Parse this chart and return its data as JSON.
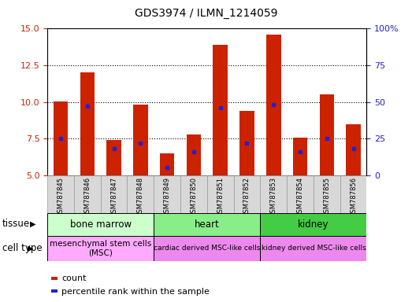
{
  "title": "GDS3974 / ILMN_1214059",
  "samples": [
    "GSM787845",
    "GSM787846",
    "GSM787847",
    "GSM787848",
    "GSM787849",
    "GSM787850",
    "GSM787851",
    "GSM787852",
    "GSM787853",
    "GSM787854",
    "GSM787855",
    "GSM787856"
  ],
  "counts": [
    10.05,
    12.0,
    7.4,
    9.8,
    6.5,
    7.8,
    13.9,
    9.4,
    14.6,
    7.55,
    10.5,
    8.5
  ],
  "percentiles": [
    25,
    47,
    18,
    22,
    5,
    16,
    46,
    22,
    48,
    16,
    25,
    18
  ],
  "ylim_left": [
    5,
    15
  ],
  "ylim_right": [
    0,
    100
  ],
  "yticks_left": [
    5,
    7.5,
    10,
    12.5,
    15
  ],
  "yticks_right": [
    0,
    25,
    50,
    75,
    100
  ],
  "ytick_labels_right": [
    "0",
    "25",
    "50",
    "75",
    "100%"
  ],
  "bar_color": "#cc2200",
  "dot_color": "#2222cc",
  "bar_width": 0.55,
  "tissue_spans": [
    {
      "start": 0,
      "end": 4,
      "label": "bone marrow",
      "color": "#ccffcc"
    },
    {
      "start": 4,
      "end": 8,
      "label": "heart",
      "color": "#88ee88"
    },
    {
      "start": 8,
      "end": 12,
      "label": "kidney",
      "color": "#44cc44"
    }
  ],
  "celltype_spans": [
    {
      "start": 0,
      "end": 4,
      "label": "mesenchymal stem cells\n(MSC)",
      "color": "#ffaaff",
      "fontsize": 7.5
    },
    {
      "start": 4,
      "end": 8,
      "label": "cardiac derived MSC-like cells",
      "color": "#ee88ee",
      "fontsize": 6.5
    },
    {
      "start": 8,
      "end": 12,
      "label": "kidney derived MSC-like cells",
      "color": "#ee88ee",
      "fontsize": 6.5
    }
  ],
  "grid_dotted_at": [
    7.5,
    10.0,
    12.5
  ],
  "tick_color_left": "#cc2200",
  "tick_color_right": "#2222cc",
  "plot_bg": "#ffffff",
  "legend_count_label": "count",
  "legend_pct_label": "percentile rank within the sample",
  "title_fontsize": 10,
  "xticklabel_fontsize": 6.5
}
